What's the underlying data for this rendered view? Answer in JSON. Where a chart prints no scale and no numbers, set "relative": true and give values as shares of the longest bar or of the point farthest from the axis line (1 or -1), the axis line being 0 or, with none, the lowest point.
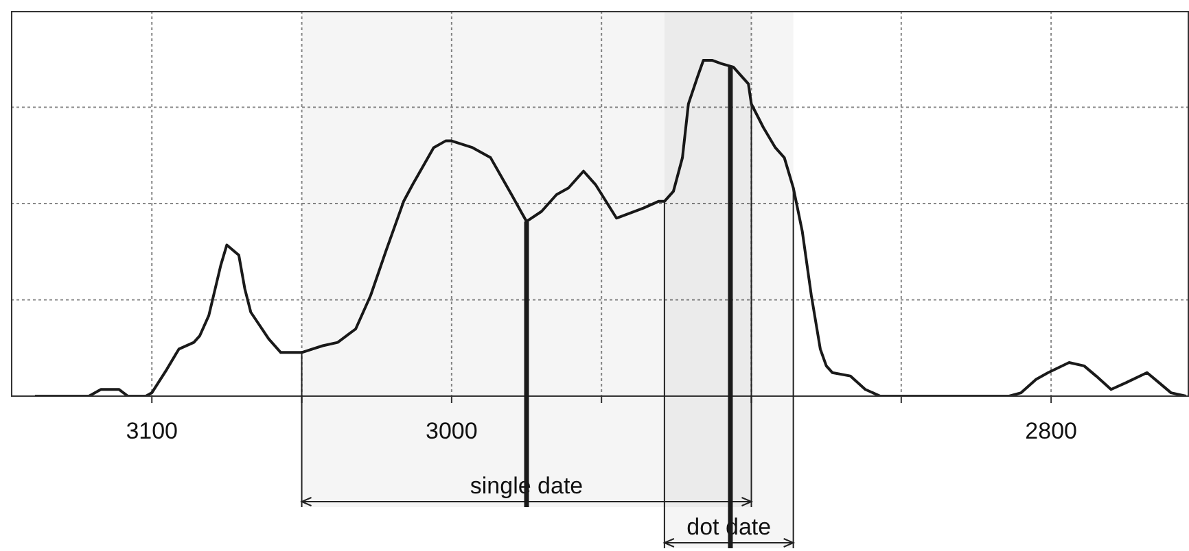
{
  "chart_data": {
    "type": "line",
    "relative": true,
    "x": [
      3139,
      3121,
      3117,
      3111,
      3108,
      3102,
      3100,
      3095,
      3091,
      3086,
      3084,
      3081,
      3077,
      3075,
      3071,
      3069,
      3067,
      3061,
      3057,
      3050,
      3043,
      3038,
      3032,
      3027,
      3022,
      3016,
      3013,
      3006,
      3002,
      3000,
      2993,
      2987,
      2980,
      2975,
      2970,
      2965,
      2961,
      2956,
      2952,
      2945,
      2936,
      2931,
      2929,
      2926,
      2923,
      2921,
      2918,
      2916,
      2913,
      2910,
      2906,
      2901,
      2900,
      2896,
      2892,
      2889,
      2886,
      2883,
      2880,
      2877,
      2875,
      2873,
      2867,
      2862,
      2857,
      2831,
      2814,
      2810,
      2805,
      2801,
      2794,
      2789,
      2785,
      2780,
      2775,
      2768,
      2764,
      2760,
      2755
    ],
    "series": [
      {
        "color": "#1a1a1a",
        "values": [
          0,
          0,
          0.02,
          0.02,
          0.0,
          0.0,
          0.01,
          0.08,
          0.14,
          0.16,
          0.18,
          0.24,
          0.39,
          0.45,
          0.42,
          0.32,
          0.25,
          0.17,
          0.13,
          0.13,
          0.15,
          0.16,
          0.2,
          0.3,
          0.43,
          0.58,
          0.63,
          0.74,
          0.76,
          0.76,
          0.74,
          0.71,
          0.6,
          0.52,
          0.55,
          0.6,
          0.62,
          0.67,
          0.63,
          0.53,
          0.56,
          0.58,
          0.58,
          0.61,
          0.71,
          0.87,
          0.95,
          1.0,
          1.0,
          0.99,
          0.98,
          0.93,
          0.87,
          0.8,
          0.74,
          0.71,
          0.62,
          0.49,
          0.3,
          0.14,
          0.09,
          0.07,
          0.06,
          0.02,
          0,
          0,
          0,
          0.01,
          0.05,
          0.07,
          0.1,
          0.09,
          0.06,
          0.02,
          0.04,
          0.07,
          0.04,
          0.01,
          0
        ]
      }
    ],
    "xlim": [
      3147,
      2754
    ],
    "xticks": [
      {
        "value": 3100,
        "label": "3100"
      },
      {
        "value": 3050,
        "label": null
      },
      {
        "value": 3000,
        "label": "3000"
      },
      {
        "value": 2950,
        "label": null
      },
      {
        "value": 2900,
        "label": null
      },
      {
        "value": 2850,
        "label": null
      },
      {
        "value": 2800,
        "label": "2800"
      }
    ],
    "grid": true,
    "marker": "none",
    "line_style": "solid",
    "tick_labels": "x",
    "ref_lines": [
      {
        "axis": "x",
        "value": 2975,
        "color": "#1a1a1a"
      },
      {
        "axis": "x",
        "value": 2907,
        "color": "#1a1a1a"
      }
    ],
    "bands": [
      {
        "axis": "x",
        "from": 3050,
        "to": 2900,
        "label": "single date"
      },
      {
        "axis": "x",
        "from": 2929,
        "to": 2886,
        "label": "dot date"
      }
    ]
  }
}
